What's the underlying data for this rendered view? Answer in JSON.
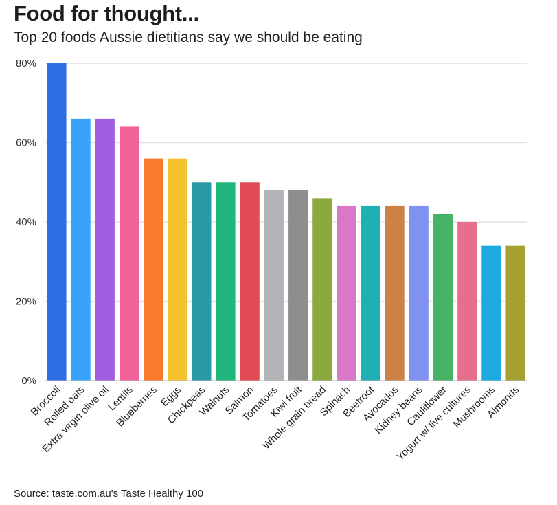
{
  "title": "Food for thought...",
  "subtitle": "Top 20 foods Aussie dietitians say we should be eating",
  "source": "Source: taste.com.au's Taste Healthy 100",
  "chart_data": {
    "type": "bar",
    "title": "Food for thought...",
    "subtitle": "Top 20 foods Aussie dietitians say we should be eating",
    "xlabel": "",
    "ylabel": "",
    "ylim": [
      0,
      80
    ],
    "yticks": [
      "0%",
      "20%",
      "40%",
      "60%",
      "80%"
    ],
    "ytick_values": [
      0,
      20,
      40,
      60,
      80
    ],
    "grid": true,
    "categories": [
      "Broccoli",
      "Rolled oats",
      "Extra virgin olive oil",
      "Lentils",
      "Blueberries",
      "Eggs",
      "Chickpeas",
      "Walnuts",
      "Salmon",
      "Tomatoes",
      "Kiwi fruit",
      "Whole grain bread",
      "Spinach",
      "Beetroot",
      "Avocados",
      "Kidney beans",
      "Cauliflower",
      "Yogurt w/ live cultures",
      "Mushrooms",
      "Almonds"
    ],
    "values": [
      80,
      66,
      66,
      64,
      56,
      56,
      50,
      50,
      50,
      48,
      48,
      46,
      44,
      44,
      44,
      44,
      42,
      40,
      34,
      34
    ],
    "colors": [
      "#2f6fe4",
      "#37a3ff",
      "#a05ee3",
      "#f3629a",
      "#f87a2a",
      "#f5c22f",
      "#2a9aa8",
      "#22b57c",
      "#e14b55",
      "#b1b3b7",
      "#8e8e8e",
      "#8aab3c",
      "#d977c9",
      "#1fb0b5",
      "#cc8244",
      "#8091f1",
      "#45b264",
      "#e86e8d",
      "#1fa9e1",
      "#a7a032"
    ]
  }
}
